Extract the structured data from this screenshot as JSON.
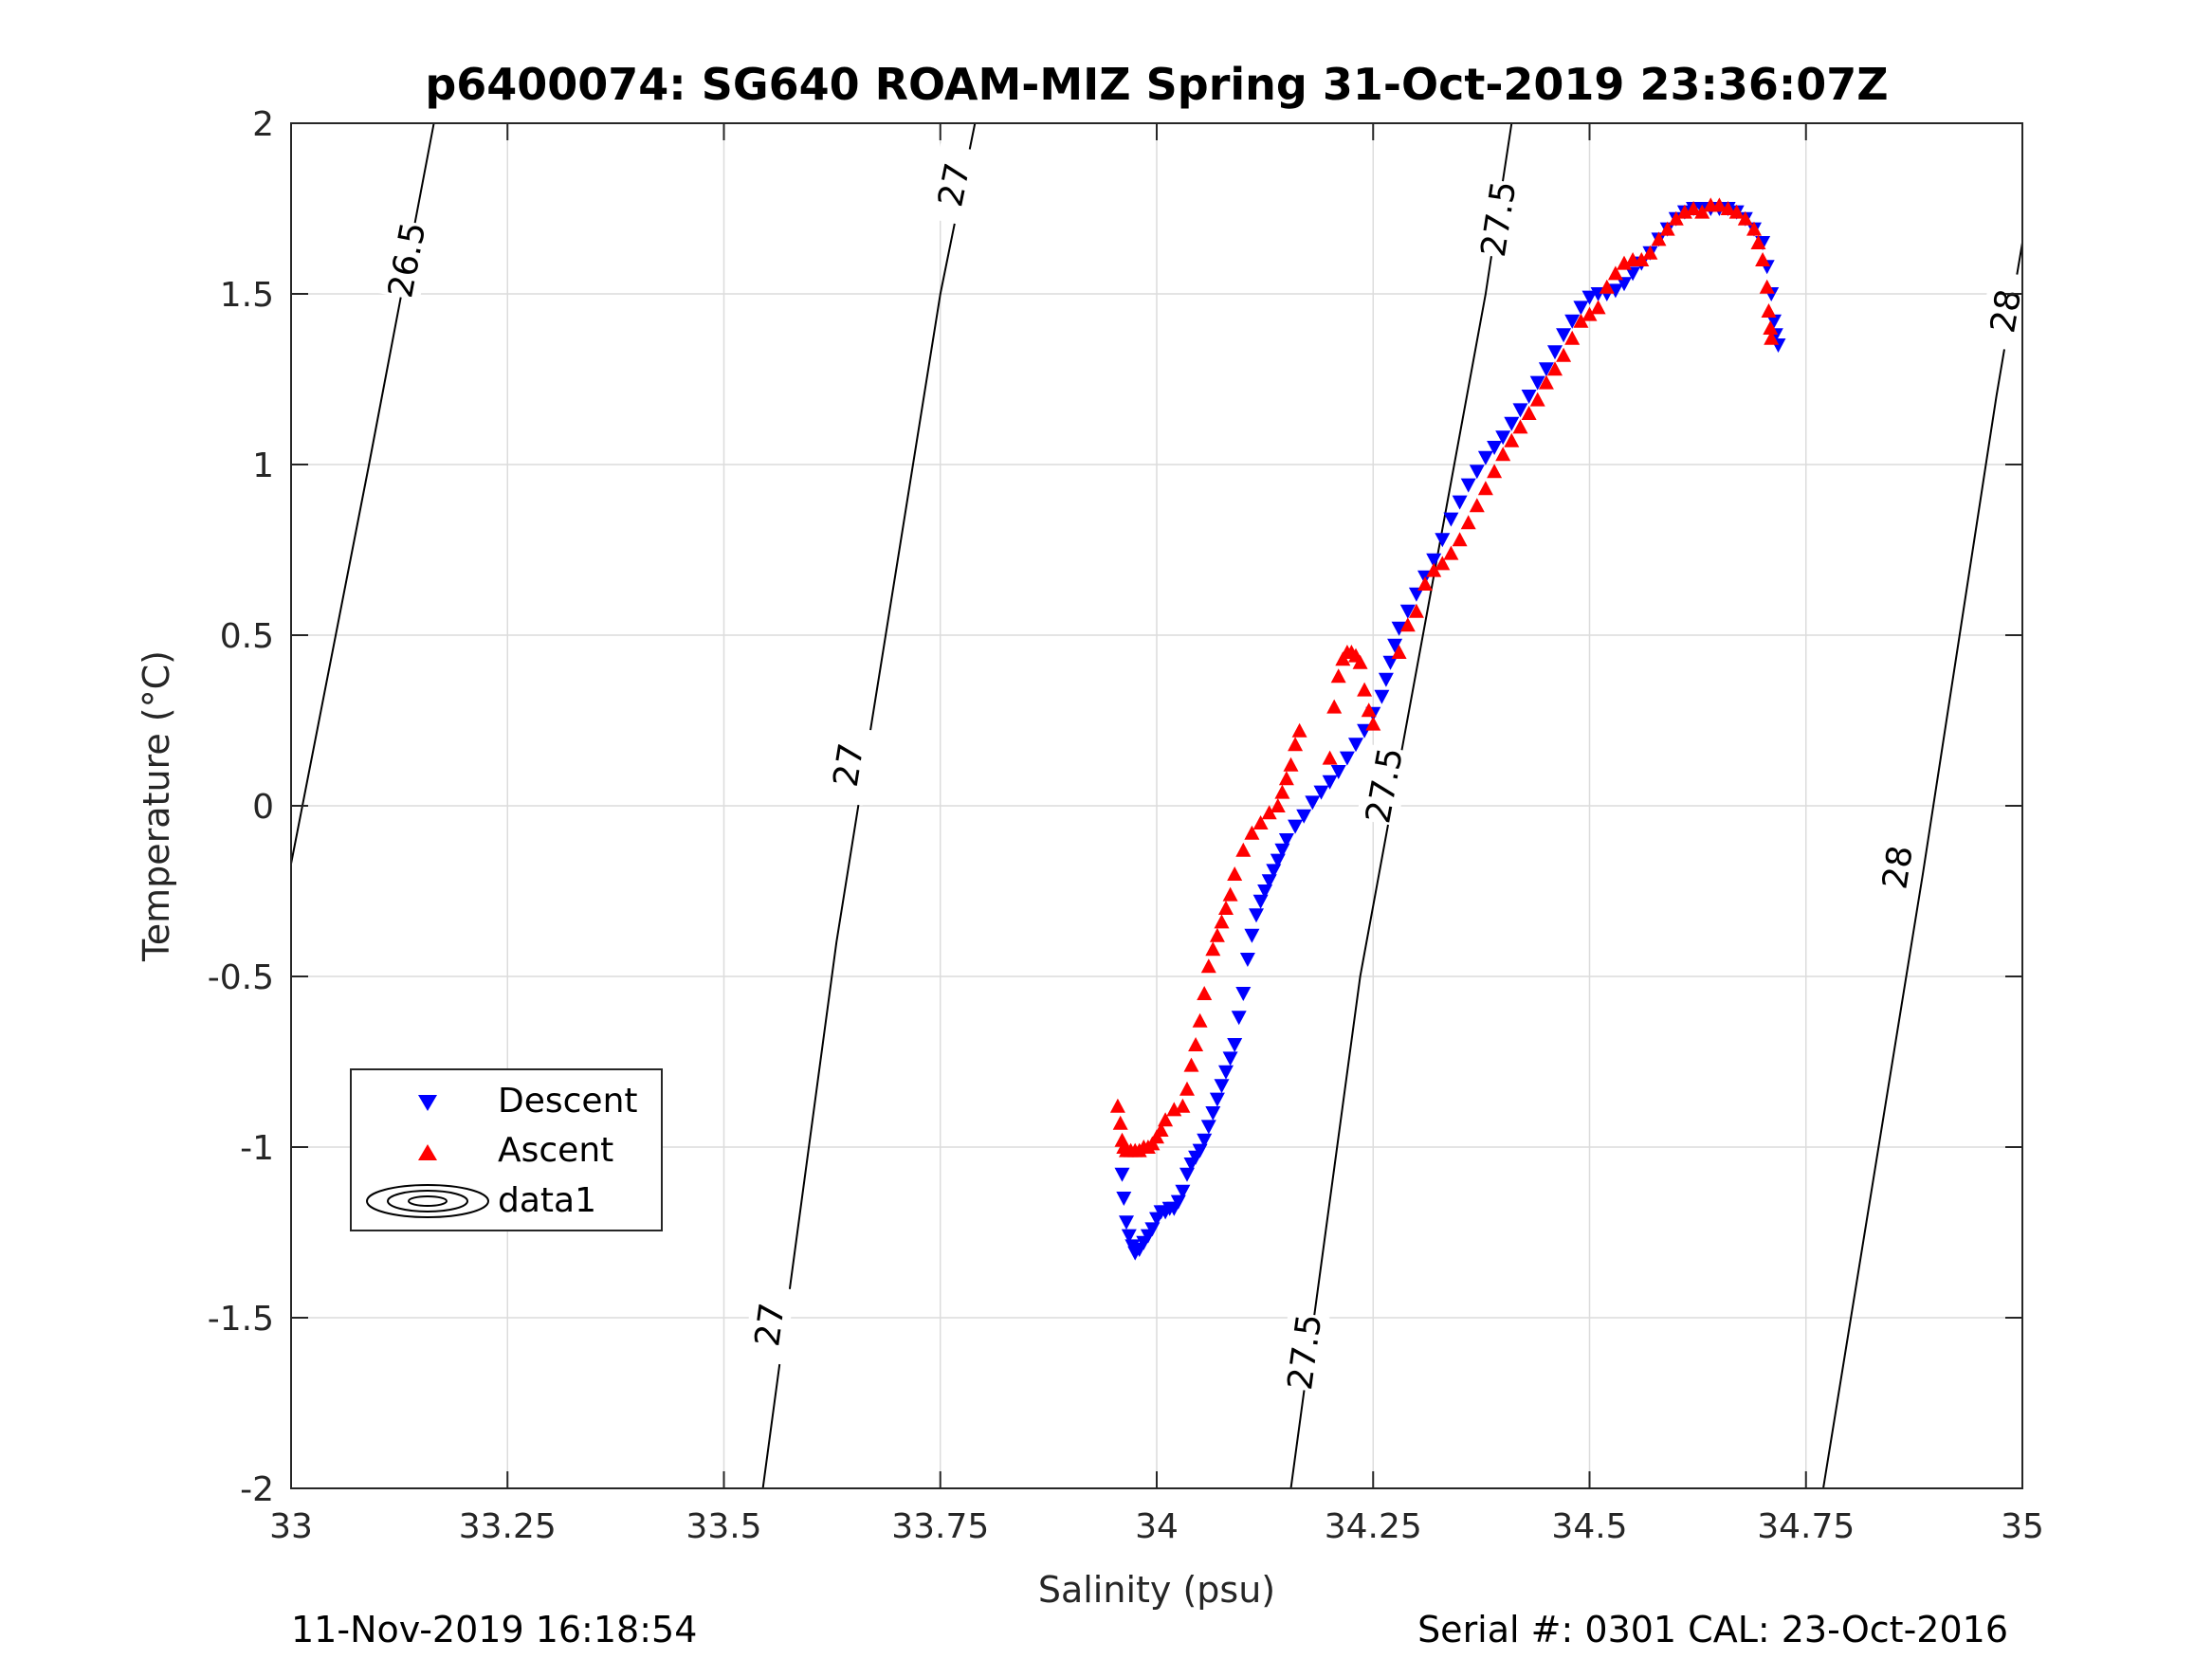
{
  "chart_data": {
    "type": "scatter",
    "title": "p6400074: SG640 ROAM-MIZ Spring 31-Oct-2019 23:36:07Z",
    "xlabel": "Salinity (psu)",
    "ylabel": "Temperature (°C)",
    "xlim": [
      33,
      35
    ],
    "ylim": [
      -2,
      2
    ],
    "xticks": [
      33,
      33.25,
      33.5,
      33.75,
      34,
      34.25,
      34.5,
      34.75,
      35
    ],
    "xtick_labels": [
      "33",
      "33.25",
      "33.5",
      "33.75",
      "34",
      "34.25",
      "34.5",
      "34.75",
      "35"
    ],
    "yticks": [
      -2,
      -1.5,
      -1,
      -0.5,
      0,
      0.5,
      1,
      1.5,
      2
    ],
    "ytick_labels": [
      "-2",
      "-1.5",
      "-1",
      "-0.5",
      "0",
      "0.5",
      "1",
      "1.5",
      "2"
    ],
    "grid": true,
    "legend_position": "lower-left",
    "legend": [
      "Descent",
      "Ascent",
      "data1"
    ],
    "series": [
      {
        "name": "Descent",
        "marker": "triangle-down",
        "color": "#0000ff",
        "points": [
          [
            33.96,
            -1.08
          ],
          [
            33.962,
            -1.15
          ],
          [
            33.965,
            -1.22
          ],
          [
            33.968,
            -1.26
          ],
          [
            33.972,
            -1.29
          ],
          [
            33.975,
            -1.31
          ],
          [
            33.98,
            -1.3
          ],
          [
            33.985,
            -1.28
          ],
          [
            33.99,
            -1.26
          ],
          [
            33.995,
            -1.24
          ],
          [
            34.0,
            -1.21
          ],
          [
            34.005,
            -1.19
          ],
          [
            34.01,
            -1.19
          ],
          [
            34.015,
            -1.18
          ],
          [
            34.02,
            -1.18
          ],
          [
            34.025,
            -1.16
          ],
          [
            34.03,
            -1.13
          ],
          [
            34.035,
            -1.08
          ],
          [
            34.04,
            -1.05
          ],
          [
            34.045,
            -1.03
          ],
          [
            34.05,
            -1.01
          ],
          [
            34.055,
            -0.98
          ],
          [
            34.06,
            -0.94
          ],
          [
            34.065,
            -0.9
          ],
          [
            34.07,
            -0.86
          ],
          [
            34.075,
            -0.82
          ],
          [
            34.08,
            -0.78
          ],
          [
            34.085,
            -0.74
          ],
          [
            34.09,
            -0.7
          ],
          [
            34.095,
            -0.62
          ],
          [
            34.1,
            -0.55
          ],
          [
            34.105,
            -0.45
          ],
          [
            34.11,
            -0.38
          ],
          [
            34.115,
            -0.32
          ],
          [
            34.12,
            -0.28
          ],
          [
            34.125,
            -0.25
          ],
          [
            34.13,
            -0.22
          ],
          [
            34.135,
            -0.19
          ],
          [
            34.14,
            -0.16
          ],
          [
            34.145,
            -0.13
          ],
          [
            34.15,
            -0.1
          ],
          [
            34.16,
            -0.06
          ],
          [
            34.17,
            -0.03
          ],
          [
            34.18,
            0.01
          ],
          [
            34.19,
            0.04
          ],
          [
            34.2,
            0.07
          ],
          [
            34.21,
            0.1
          ],
          [
            34.22,
            0.14
          ],
          [
            34.23,
            0.18
          ],
          [
            34.24,
            0.22
          ],
          [
            34.25,
            0.27
          ],
          [
            34.26,
            0.32
          ],
          [
            34.265,
            0.37
          ],
          [
            34.27,
            0.42
          ],
          [
            34.275,
            0.47
          ],
          [
            34.28,
            0.52
          ],
          [
            34.29,
            0.57
          ],
          [
            34.3,
            0.62
          ],
          [
            34.31,
            0.67
          ],
          [
            34.32,
            0.72
          ],
          [
            34.33,
            0.78
          ],
          [
            34.34,
            0.84
          ],
          [
            34.35,
            0.89
          ],
          [
            34.36,
            0.94
          ],
          [
            34.37,
            0.98
          ],
          [
            34.38,
            1.02
          ],
          [
            34.39,
            1.05
          ],
          [
            34.4,
            1.08
          ],
          [
            34.41,
            1.12
          ],
          [
            34.42,
            1.16
          ],
          [
            34.43,
            1.2
          ],
          [
            34.44,
            1.24
          ],
          [
            34.45,
            1.28
          ],
          [
            34.46,
            1.33
          ],
          [
            34.47,
            1.38
          ],
          [
            34.48,
            1.42
          ],
          [
            34.49,
            1.46
          ],
          [
            34.5,
            1.49
          ],
          [
            34.51,
            1.5
          ],
          [
            34.52,
            1.5
          ],
          [
            34.53,
            1.51
          ],
          [
            34.54,
            1.53
          ],
          [
            34.55,
            1.56
          ],
          [
            34.56,
            1.59
          ],
          [
            34.57,
            1.62
          ],
          [
            34.58,
            1.66
          ],
          [
            34.59,
            1.69
          ],
          [
            34.6,
            1.72
          ],
          [
            34.61,
            1.74
          ],
          [
            34.62,
            1.75
          ],
          [
            34.63,
            1.75
          ],
          [
            34.64,
            1.75
          ],
          [
            34.65,
            1.75
          ],
          [
            34.66,
            1.75
          ],
          [
            34.67,
            1.74
          ],
          [
            34.68,
            1.72
          ],
          [
            34.69,
            1.69
          ],
          [
            34.7,
            1.65
          ],
          [
            34.705,
            1.58
          ],
          [
            34.71,
            1.5
          ],
          [
            34.713,
            1.42
          ],
          [
            34.715,
            1.38
          ],
          [
            34.718,
            1.35
          ]
        ]
      },
      {
        "name": "Ascent",
        "marker": "triangle-up",
        "color": "#ff0000",
        "points": [
          [
            33.955,
            -0.88
          ],
          [
            33.958,
            -0.93
          ],
          [
            33.96,
            -0.98
          ],
          [
            33.962,
            -1.0
          ],
          [
            33.965,
            -1.01
          ],
          [
            33.97,
            -1.01
          ],
          [
            33.975,
            -1.01
          ],
          [
            33.98,
            -1.01
          ],
          [
            33.985,
            -1.0
          ],
          [
            33.99,
            -1.0
          ],
          [
            33.995,
            -0.99
          ],
          [
            34.0,
            -0.97
          ],
          [
            34.005,
            -0.95
          ],
          [
            34.01,
            -0.92
          ],
          [
            34.02,
            -0.89
          ],
          [
            34.03,
            -0.88
          ],
          [
            34.035,
            -0.83
          ],
          [
            34.04,
            -0.76
          ],
          [
            34.045,
            -0.7
          ],
          [
            34.05,
            -0.63
          ],
          [
            34.055,
            -0.55
          ],
          [
            34.06,
            -0.47
          ],
          [
            34.065,
            -0.42
          ],
          [
            34.07,
            -0.38
          ],
          [
            34.075,
            -0.34
          ],
          [
            34.08,
            -0.3
          ],
          [
            34.085,
            -0.26
          ],
          [
            34.09,
            -0.2
          ],
          [
            34.1,
            -0.13
          ],
          [
            34.11,
            -0.08
          ],
          [
            34.12,
            -0.05
          ],
          [
            34.13,
            -0.02
          ],
          [
            34.14,
            0.0
          ],
          [
            34.145,
            0.04
          ],
          [
            34.15,
            0.08
          ],
          [
            34.155,
            0.12
          ],
          [
            34.16,
            0.18
          ],
          [
            34.165,
            0.22
          ],
          [
            34.2,
            0.14
          ],
          [
            34.205,
            0.29
          ],
          [
            34.21,
            0.38
          ],
          [
            34.215,
            0.43
          ],
          [
            34.22,
            0.45
          ],
          [
            34.225,
            0.45
          ],
          [
            34.23,
            0.44
          ],
          [
            34.235,
            0.42
          ],
          [
            34.24,
            0.34
          ],
          [
            34.245,
            0.28
          ],
          [
            34.25,
            0.24
          ],
          [
            34.28,
            0.45
          ],
          [
            34.29,
            0.53
          ],
          [
            34.3,
            0.57
          ],
          [
            34.31,
            0.65
          ],
          [
            34.32,
            0.69
          ],
          [
            34.33,
            0.71
          ],
          [
            34.34,
            0.74
          ],
          [
            34.35,
            0.78
          ],
          [
            34.36,
            0.83
          ],
          [
            34.37,
            0.88
          ],
          [
            34.38,
            0.93
          ],
          [
            34.39,
            0.98
          ],
          [
            34.4,
            1.03
          ],
          [
            34.41,
            1.07
          ],
          [
            34.42,
            1.11
          ],
          [
            34.43,
            1.15
          ],
          [
            34.44,
            1.19
          ],
          [
            34.45,
            1.24
          ],
          [
            34.46,
            1.28
          ],
          [
            34.47,
            1.32
          ],
          [
            34.48,
            1.37
          ],
          [
            34.49,
            1.42
          ],
          [
            34.5,
            1.44
          ],
          [
            34.51,
            1.46
          ],
          [
            34.52,
            1.52
          ],
          [
            34.53,
            1.56
          ],
          [
            34.54,
            1.59
          ],
          [
            34.55,
            1.6
          ],
          [
            34.56,
            1.6
          ],
          [
            34.57,
            1.62
          ],
          [
            34.58,
            1.66
          ],
          [
            34.59,
            1.69
          ],
          [
            34.6,
            1.72
          ],
          [
            34.61,
            1.74
          ],
          [
            34.62,
            1.75
          ],
          [
            34.63,
            1.74
          ],
          [
            34.64,
            1.76
          ],
          [
            34.65,
            1.76
          ],
          [
            34.66,
            1.75
          ],
          [
            34.67,
            1.74
          ],
          [
            34.68,
            1.72
          ],
          [
            34.69,
            1.69
          ],
          [
            34.695,
            1.65
          ],
          [
            34.7,
            1.6
          ],
          [
            34.705,
            1.52
          ],
          [
            34.707,
            1.45
          ],
          [
            34.709,
            1.4
          ],
          [
            34.71,
            1.37
          ]
        ]
      }
    ],
    "contours": [
      {
        "level_label": "26.5",
        "points": [
          [
            33.0,
            -0.17
          ],
          [
            33.09,
            1.0
          ],
          [
            33.165,
            2.0
          ]
        ],
        "labels": [
          [
            33.133,
            1.6
          ]
        ]
      },
      {
        "level_label": "27",
        "points": [
          [
            33.545,
            -2.0
          ],
          [
            33.63,
            -0.4
          ],
          [
            33.75,
            1.5
          ],
          [
            33.79,
            2.0
          ]
        ],
        "labels": [
          [
            33.552,
            -1.52
          ],
          [
            33.643,
            0.12
          ],
          [
            33.765,
            1.82
          ]
        ]
      },
      {
        "level_label": "27.5",
        "points": [
          [
            34.155,
            -2.0
          ],
          [
            34.235,
            -0.5
          ],
          [
            34.38,
            1.5
          ],
          [
            34.41,
            2.0
          ]
        ],
        "labels": [
          [
            34.17,
            -1.6
          ],
          [
            34.262,
            0.06
          ],
          [
            34.394,
            1.72
          ]
        ]
      },
      {
        "level_label": "28",
        "points": [
          [
            34.77,
            -2.0
          ],
          [
            34.885,
            -0.2
          ],
          [
            34.97,
            1.2
          ],
          [
            35.0,
            1.65
          ]
        ],
        "labels": [
          [
            34.855,
            -0.18
          ],
          [
            34.98,
            1.45
          ]
        ]
      }
    ]
  },
  "footer": {
    "left": "11-Nov-2019 16:18:54",
    "right": "Serial #: 0301  CAL: 23-Oct-2016"
  }
}
